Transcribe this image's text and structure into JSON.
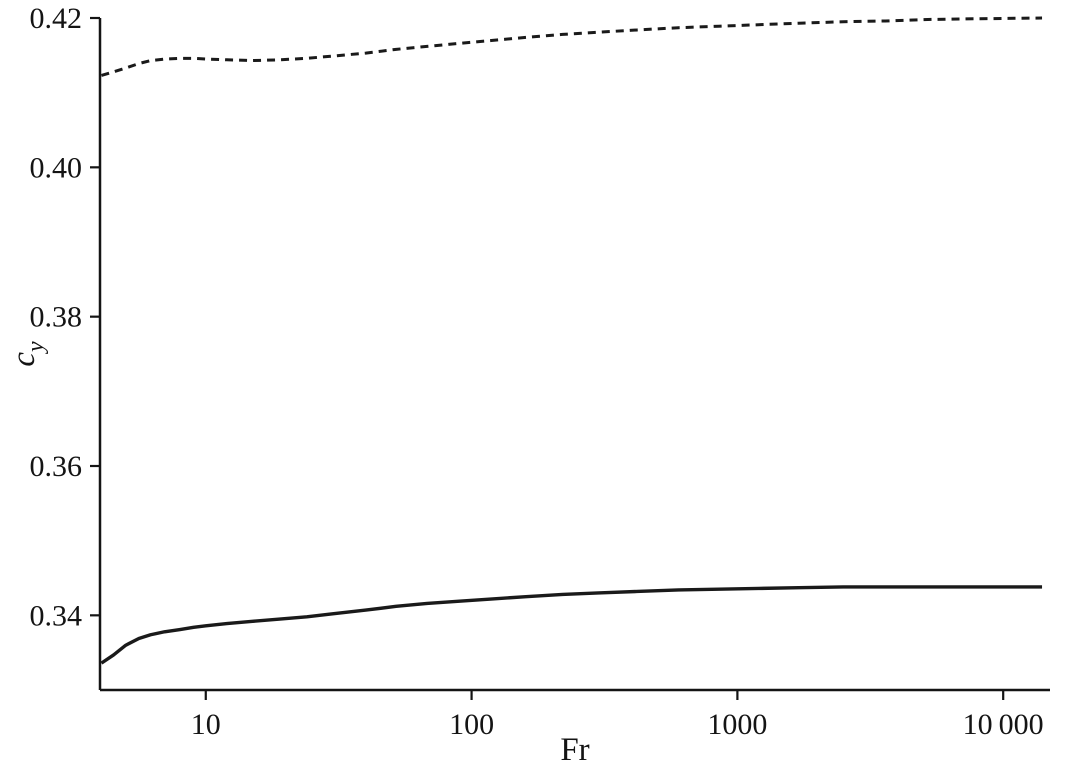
{
  "figure": {
    "background": "#ffffff",
    "axis_color": "#141414",
    "text_color": "#141414"
  },
  "chart_data": {
    "type": "line",
    "title": "",
    "xlabel": "Fr",
    "ylabel": "cy",
    "ylabel_main": "c",
    "ylabel_sub": "y",
    "x_scale": "log",
    "y_scale": "linear",
    "xlim": [
      4,
      15000
    ],
    "ylim": [
      0.33,
      0.42
    ],
    "x_ticks": [
      10,
      100,
      1000,
      10000
    ],
    "x_tick_labels": [
      "10",
      "100",
      "1000",
      "10 000"
    ],
    "y_ticks": [
      0.34,
      0.36,
      0.38,
      0.4,
      0.42
    ],
    "y_tick_labels": [
      "0.34",
      "0.36",
      "0.38",
      "0.40",
      "0.42"
    ],
    "grid": false,
    "legend": "none",
    "line_color": "#1a1a1a",
    "series": [
      {
        "name": "upper-dashed",
        "style": "dashed",
        "x": [
          4.05,
          4.5,
          5,
          5.6,
          6.2,
          7,
          8,
          9,
          10,
          12,
          15,
          19,
          24,
          30,
          40,
          52,
          68,
          90,
          120,
          160,
          220,
          300,
          420,
          600,
          850,
          1200,
          1700,
          2500,
          3600,
          5200,
          8000,
          14000
        ],
        "y": [
          0.4123,
          0.4128,
          0.4133,
          0.4139,
          0.4143,
          0.4145,
          0.4146,
          0.4146,
          0.4145,
          0.4144,
          0.4143,
          0.4144,
          0.4146,
          0.4149,
          0.4153,
          0.4158,
          0.4162,
          0.4166,
          0.417,
          0.4174,
          0.4178,
          0.4181,
          0.4184,
          0.4187,
          0.4189,
          0.4191,
          0.4193,
          0.4195,
          0.4196,
          0.4198,
          0.4199,
          0.42
        ]
      },
      {
        "name": "lower-solid",
        "style": "solid",
        "x": [
          4.05,
          4.5,
          5,
          5.6,
          6.2,
          7,
          8,
          9,
          10,
          12,
          15,
          19,
          24,
          30,
          40,
          52,
          68,
          90,
          120,
          160,
          220,
          300,
          420,
          600,
          850,
          1200,
          1700,
          2500,
          3600,
          5200,
          8000,
          14000
        ],
        "y": [
          0.3336,
          0.3347,
          0.336,
          0.3369,
          0.3374,
          0.3378,
          0.3381,
          0.3384,
          0.3386,
          0.3389,
          0.3392,
          0.3395,
          0.3398,
          0.3402,
          0.3407,
          0.3412,
          0.3416,
          0.3419,
          0.3422,
          0.3425,
          0.3428,
          0.343,
          0.3432,
          0.3434,
          0.3435,
          0.3436,
          0.3437,
          0.3438,
          0.3438,
          0.3438,
          0.3438,
          0.3438
        ]
      }
    ]
  }
}
